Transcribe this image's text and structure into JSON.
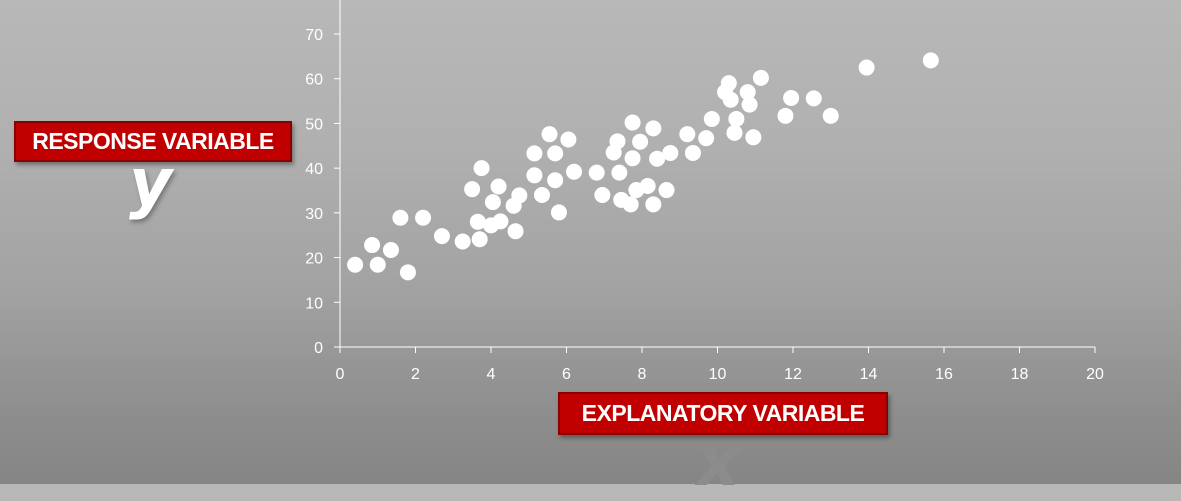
{
  "labels": {
    "response_variable": "RESPONSE VARIABLE",
    "y_letter": "y",
    "explanatory_variable": "EXPLANATORY VARIABLE",
    "x_letter": "x"
  },
  "colors": {
    "points": "#ffffff",
    "axis": "#ffffff",
    "label_box": "#c00000",
    "x_letter": "#8c8c8c"
  },
  "chart_data": {
    "type": "scatter",
    "title": "",
    "xlabel": "EXPLANATORY VARIABLE",
    "ylabel": "RESPONSE VARIABLE",
    "xlim": [
      0,
      20
    ],
    "ylim": [
      0,
      70
    ],
    "xticks": [
      0,
      2,
      4,
      6,
      8,
      10,
      12,
      14,
      16,
      18,
      20
    ],
    "yticks": [
      0,
      10,
      20,
      30,
      40,
      50,
      60,
      70
    ],
    "grid": false,
    "legend": "none",
    "points": [
      [
        0.4,
        18.4
      ],
      [
        0.85,
        22.8
      ],
      [
        1.0,
        18.4
      ],
      [
        1.35,
        21.7
      ],
      [
        1.6,
        28.9
      ],
      [
        1.8,
        16.7
      ],
      [
        2.2,
        28.9
      ],
      [
        2.7,
        24.8
      ],
      [
        3.25,
        23.6
      ],
      [
        3.5,
        35.3
      ],
      [
        3.65,
        28.0
      ],
      [
        3.7,
        24.1
      ],
      [
        3.75,
        40.0
      ],
      [
        4.0,
        27.2
      ],
      [
        4.05,
        32.4
      ],
      [
        4.2,
        35.9
      ],
      [
        4.25,
        28.1
      ],
      [
        4.6,
        31.6
      ],
      [
        4.65,
        25.9
      ],
      [
        4.75,
        33.9
      ],
      [
        5.15,
        38.4
      ],
      [
        5.15,
        43.3
      ],
      [
        5.35,
        34.0
      ],
      [
        5.55,
        47.6
      ],
      [
        5.7,
        37.3
      ],
      [
        5.7,
        43.3
      ],
      [
        5.8,
        30.1
      ],
      [
        6.05,
        46.4
      ],
      [
        6.2,
        39.2
      ],
      [
        6.8,
        39.0
      ],
      [
        6.95,
        34.0
      ],
      [
        7.25,
        43.5
      ],
      [
        7.35,
        46.0
      ],
      [
        7.4,
        39.0
      ],
      [
        7.45,
        32.9
      ],
      [
        7.7,
        31.9
      ],
      [
        7.75,
        42.2
      ],
      [
        7.75,
        50.2
      ],
      [
        7.85,
        35.1
      ],
      [
        7.95,
        45.9
      ],
      [
        8.15,
        36.0
      ],
      [
        8.3,
        48.9
      ],
      [
        8.3,
        31.9
      ],
      [
        8.4,
        42.1
      ],
      [
        8.65,
        35.1
      ],
      [
        8.75,
        43.4
      ],
      [
        9.2,
        47.6
      ],
      [
        9.35,
        43.4
      ],
      [
        9.7,
        46.7
      ],
      [
        9.85,
        51.0
      ],
      [
        10.2,
        57.0
      ],
      [
        10.3,
        59.0
      ],
      [
        10.35,
        55.3
      ],
      [
        10.45,
        47.9
      ],
      [
        10.5,
        51.0
      ],
      [
        10.8,
        57.0
      ],
      [
        10.85,
        54.2
      ],
      [
        10.95,
        46.9
      ],
      [
        11.15,
        60.2
      ],
      [
        11.8,
        51.7
      ],
      [
        11.95,
        55.7
      ],
      [
        12.55,
        55.6
      ],
      [
        13.0,
        51.7
      ],
      [
        13.95,
        62.5
      ],
      [
        15.65,
        64.1
      ]
    ]
  }
}
